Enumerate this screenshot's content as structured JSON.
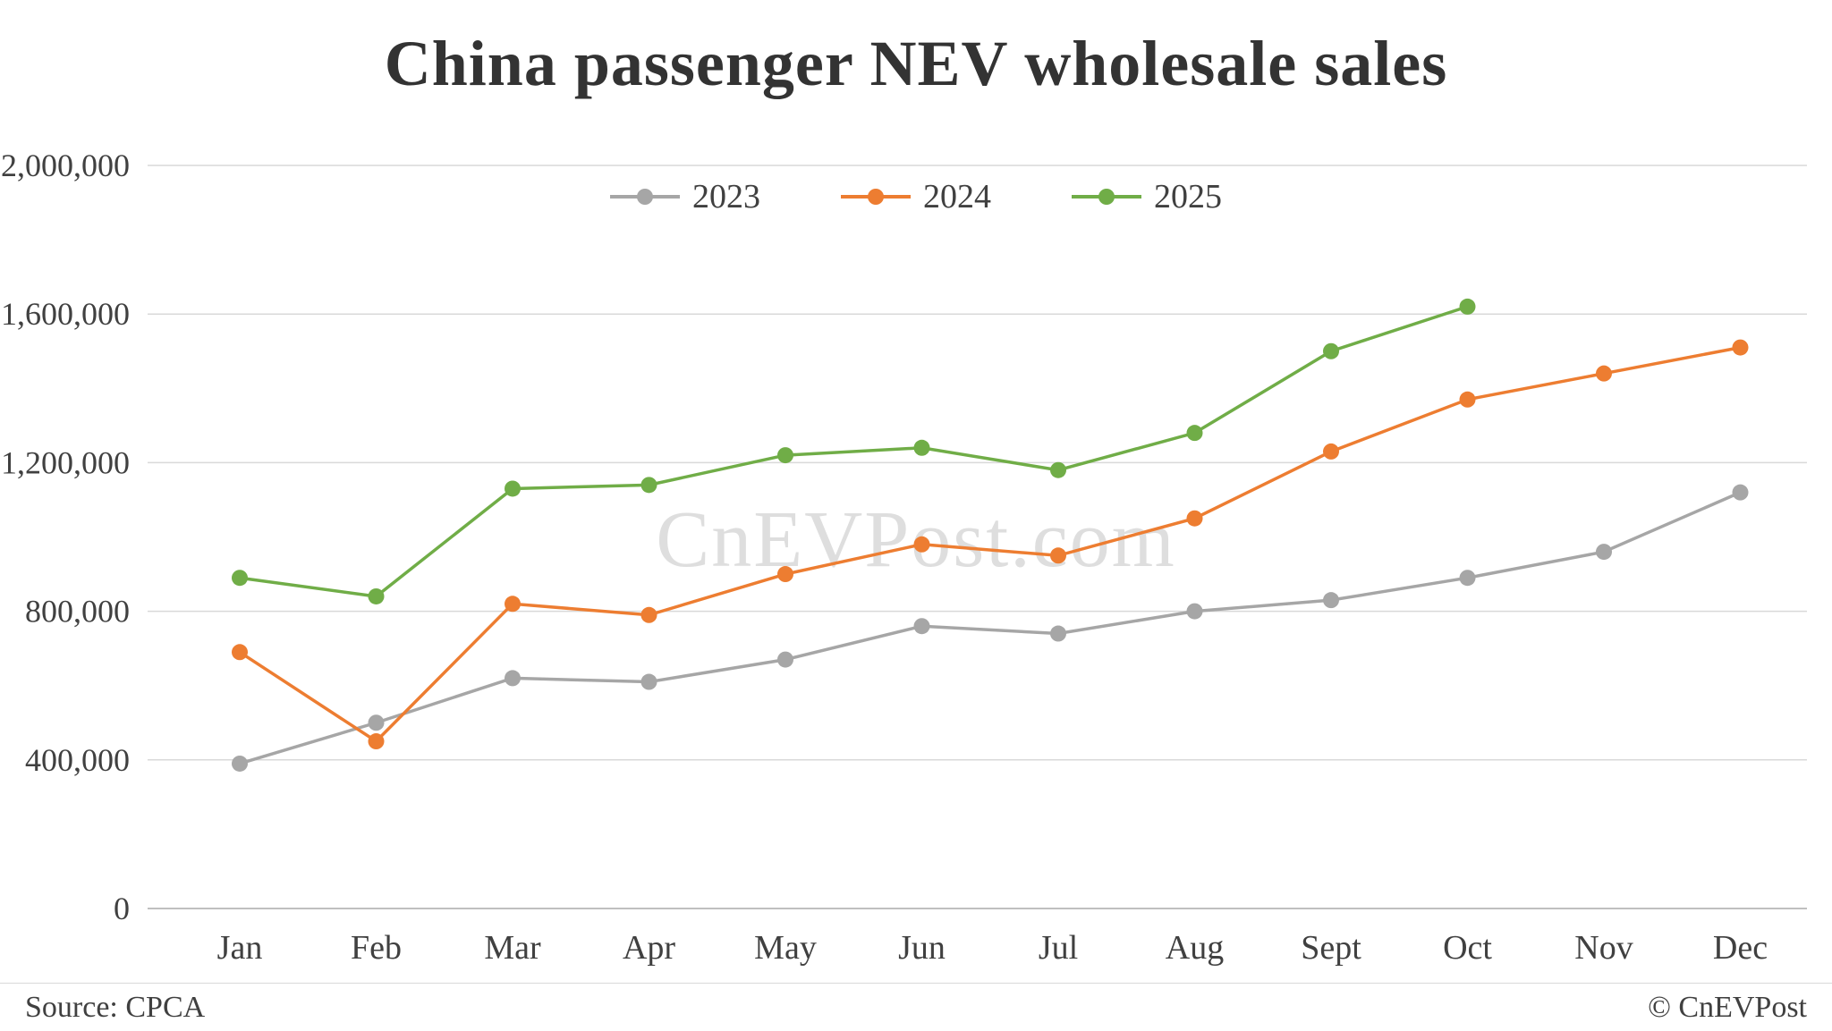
{
  "watermark": "CnEVPost.com",
  "footer": {
    "source": "Source: CPCA",
    "copyright": "© CnEVPost"
  },
  "chart_data": {
    "type": "line",
    "title": "China passenger NEV wholesale sales",
    "xlabel": "",
    "ylabel": "",
    "categories": [
      "Jan",
      "Feb",
      "Mar",
      "Apr",
      "May",
      "Jun",
      "Jul",
      "Aug",
      "Sept",
      "Oct",
      "Nov",
      "Dec"
    ],
    "y_ticks": [
      0,
      400000,
      800000,
      1200000,
      1600000,
      2000000
    ],
    "ylim": [
      0,
      2000000
    ],
    "grid": "horizontal",
    "legend_position": "top-center",
    "series": [
      {
        "name": "2023",
        "color": "#a6a6a6",
        "values": [
          390000,
          500000,
          620000,
          610000,
          670000,
          760000,
          740000,
          800000,
          830000,
          890000,
          960000,
          1120000
        ]
      },
      {
        "name": "2024",
        "color": "#ed7d31",
        "values": [
          690000,
          450000,
          820000,
          790000,
          900000,
          980000,
          950000,
          1050000,
          1230000,
          1370000,
          1440000,
          1510000
        ]
      },
      {
        "name": "2025",
        "color": "#70ad47",
        "values": [
          890000,
          840000,
          1130000,
          1140000,
          1220000,
          1240000,
          1180000,
          1280000,
          1500000,
          1620000,
          null,
          null
        ]
      }
    ]
  }
}
